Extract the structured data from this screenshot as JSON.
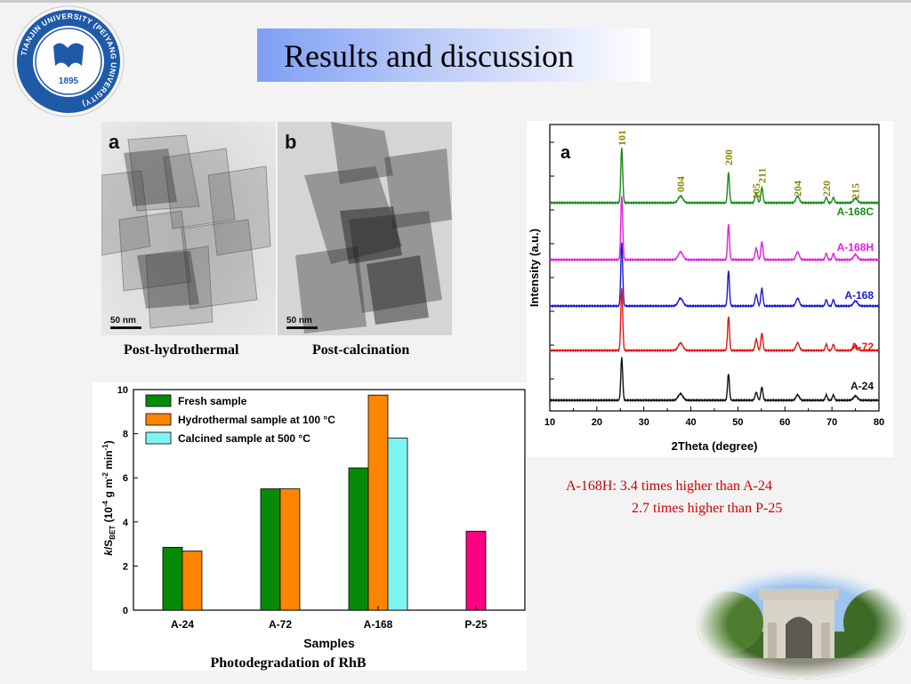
{
  "header": {
    "title": "Results and discussion",
    "logo_text": "TIANJIN UNIVERSITY (PEIYANG UNIVERSITY)",
    "logo_year": "1895"
  },
  "tem": {
    "left": {
      "panel_label": "a",
      "scale_bar": "50 nm",
      "caption": "Post-hydrothermal"
    },
    "right": {
      "panel_label": "b",
      "scale_bar": "50 nm",
      "caption": "Post-calcination"
    }
  },
  "xrd": {
    "panel_label": "a",
    "xlabel": "2Theta (degree)",
    "ylabel": "Intensity (a.u.)",
    "xticks": [
      "10",
      "20",
      "30",
      "40",
      "50",
      "60",
      "70",
      "80"
    ],
    "peak_labels": [
      {
        "text": "101",
        "x": 25.3
      },
      {
        "text": "004",
        "x": 37.8
      },
      {
        "text": "200",
        "x": 48.0
      },
      {
        "text": "105",
        "x": 53.9
      },
      {
        "text": "211",
        "x": 55.1
      },
      {
        "text": "204",
        "x": 62.7
      },
      {
        "text": "220",
        "x": 68.8
      },
      {
        "text": "215",
        "x": 75.0
      }
    ],
    "peak_label_color": "#8a8a00"
  },
  "bar": {
    "xlabel": "Samples",
    "yticks": [
      "0",
      "2",
      "4",
      "6",
      "8",
      "10"
    ],
    "caption": "Photodegradation of RhB"
  },
  "notes": {
    "line1": "A-168H: 3.4 times higher than A-24",
    "line2": "2.7 times higher than P-25"
  },
  "chart_data": [
    {
      "type": "line",
      "xlim": [
        10,
        80
      ],
      "series": [
        {
          "name": "A-168C",
          "color": "#1a8a1a",
          "peaks": [
            [
              25.3,
              1.0
            ],
            [
              37.8,
              0.12
            ],
            [
              48.0,
              0.55
            ],
            [
              53.9,
              0.18
            ],
            [
              55.1,
              0.28
            ],
            [
              62.7,
              0.12
            ],
            [
              68.8,
              0.1
            ],
            [
              70.3,
              0.1
            ],
            [
              75.0,
              0.08
            ]
          ]
        },
        {
          "name": "A-168H",
          "color": "#e020e0",
          "peaks": [
            [
              25.3,
              1.0
            ],
            [
              37.8,
              0.12
            ],
            [
              48.0,
              0.55
            ],
            [
              53.9,
              0.18
            ],
            [
              55.1,
              0.28
            ],
            [
              62.7,
              0.12
            ],
            [
              68.8,
              0.1
            ],
            [
              70.3,
              0.1
            ],
            [
              75.0,
              0.08
            ]
          ]
        },
        {
          "name": "A-168",
          "color": "#1a1ad0",
          "peaks": [
            [
              25.3,
              1.0
            ],
            [
              37.8,
              0.12
            ],
            [
              48.0,
              0.55
            ],
            [
              53.9,
              0.18
            ],
            [
              55.1,
              0.28
            ],
            [
              62.7,
              0.12
            ],
            [
              68.8,
              0.1
            ],
            [
              70.3,
              0.1
            ],
            [
              75.0,
              0.08
            ]
          ]
        },
        {
          "name": "A-72",
          "color": "#e01818",
          "peaks": [
            [
              25.3,
              1.0
            ],
            [
              37.8,
              0.12
            ],
            [
              48.0,
              0.55
            ],
            [
              53.9,
              0.18
            ],
            [
              55.1,
              0.28
            ],
            [
              62.7,
              0.12
            ],
            [
              68.8,
              0.1
            ],
            [
              70.3,
              0.1
            ],
            [
              75.0,
              0.08
            ]
          ]
        },
        {
          "name": "A-24",
          "color": "#111111",
          "peaks": [
            [
              25.3,
              0.8
            ],
            [
              37.8,
              0.12
            ],
            [
              48.0,
              0.5
            ],
            [
              53.9,
              0.15
            ],
            [
              55.1,
              0.25
            ],
            [
              62.7,
              0.1
            ],
            [
              68.8,
              0.1
            ],
            [
              70.3,
              0.1
            ],
            [
              75.0,
              0.08
            ]
          ]
        }
      ]
    },
    {
      "type": "bar",
      "ylim": [
        0,
        10
      ],
      "categories": [
        "A-24",
        "A-72",
        "A-168",
        "P-25"
      ],
      "series": [
        {
          "name": "Fresh sample",
          "color": "#078a07",
          "values": [
            2.85,
            5.5,
            6.45,
            null
          ]
        },
        {
          "name": "Hydrothermal sample at 100 °C",
          "color": "#ff8400",
          "values": [
            2.68,
            5.5,
            9.75,
            null
          ]
        },
        {
          "name": "Calcined sample at 500 °C",
          "color": "#7ff2f2",
          "values": [
            null,
            null,
            7.8,
            null
          ]
        }
      ],
      "extra": [
        {
          "category": "P-25",
          "value": 3.58,
          "color": "#ff0080"
        }
      ]
    }
  ]
}
